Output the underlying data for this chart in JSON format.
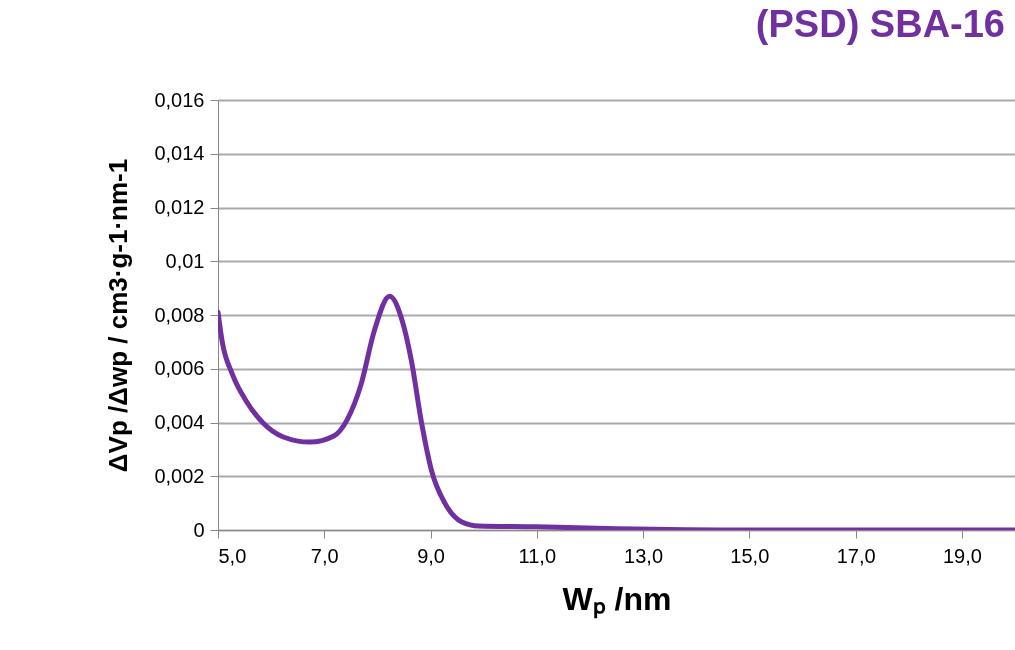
{
  "chart_data": {
    "type": "line",
    "title": "(PSD) SBA-16",
    "xlabel": "Wₚ /nm",
    "ylabel": "ΔVp /Δwp / cm3·g-1·nm-1",
    "x": [
      5.0,
      5.08,
      5.27,
      5.53,
      5.84,
      6.23,
      6.73,
      7.18,
      7.43,
      7.69,
      7.94,
      8.23,
      8.45,
      8.64,
      8.83,
      9.02,
      9.27,
      9.59,
      9.91,
      11.0,
      12.5,
      15.0,
      20.0
    ],
    "series": [
      {
        "color": "#7030a0",
        "values": [
          0.0081,
          0.007,
          0.0058,
          0.0048,
          0.004,
          0.00346,
          0.00327,
          0.0035,
          0.0041,
          0.0054,
          0.0074,
          0.0087,
          0.0079,
          0.0063,
          0.004,
          0.0022,
          0.001,
          0.0003,
          0.00015,
          0.00012,
          5e-05,
          0.0,
          0.0
        ]
      }
    ],
    "xlim": [
      5,
      20
    ],
    "xticks": [
      {
        "value": 5,
        "label": "5,0"
      },
      {
        "value": 7,
        "label": "7,0"
      },
      {
        "value": 9,
        "label": "9,0"
      },
      {
        "value": 11,
        "label": "11,0"
      },
      {
        "value": 13,
        "label": "13,0"
      },
      {
        "value": 15,
        "label": "15,0"
      },
      {
        "value": 17,
        "label": "17,0"
      },
      {
        "value": 19,
        "label": "19,0"
      }
    ],
    "ylim": [
      0,
      0.016
    ],
    "yticks": [
      0,
      {
        "value": 0.002,
        "label": "0,002"
      },
      {
        "value": 0.004,
        "label": "0,004"
      },
      {
        "value": 0.006,
        "label": "0,006"
      },
      {
        "value": 0.008,
        "label": "0,008"
      },
      {
        "value": 0.01,
        "label": "0,01"
      },
      {
        "value": 0.012,
        "label": "0,012"
      },
      {
        "value": 0.014,
        "label": "0,014"
      },
      {
        "value": 0.016,
        "label": "0,016"
      }
    ],
    "grid": "y",
    "marker": "none",
    "line_style": "solid"
  }
}
